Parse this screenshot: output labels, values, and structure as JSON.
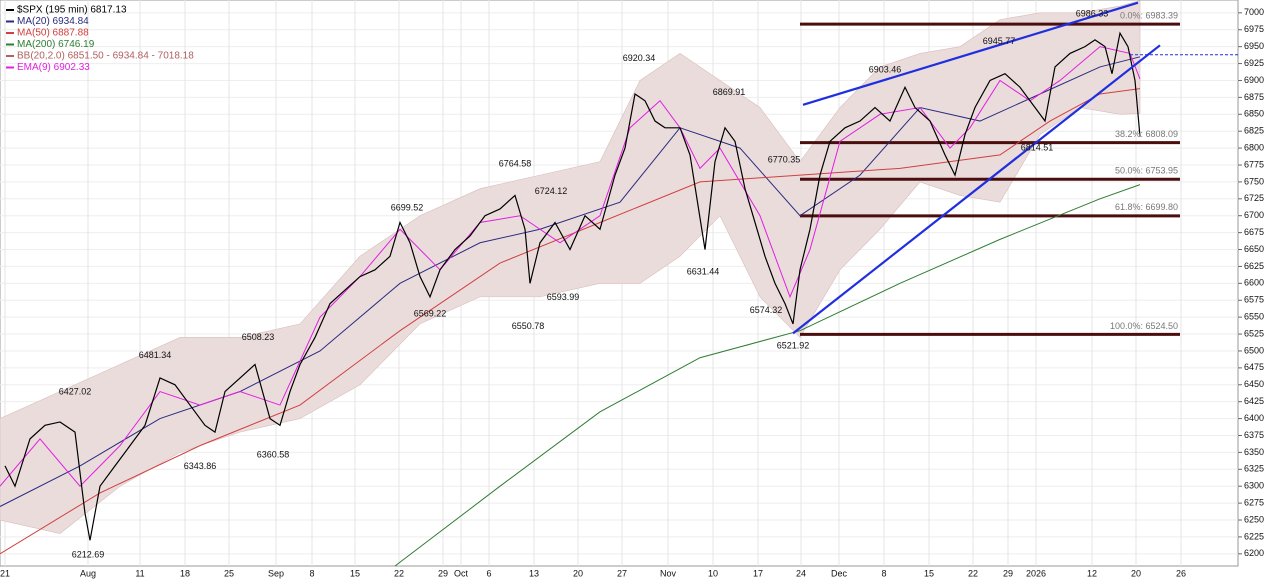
{
  "chart_data": {
    "type": "line",
    "title": "$SPX (195 min) 6817.13",
    "xlim": [
      0,
      1238
    ],
    "ylim": [
      6182,
      7019
    ],
    "xticks": [
      {
        "value": 5,
        "label": "21"
      },
      {
        "value": 88,
        "label": "Aug"
      },
      {
        "value": 140,
        "label": "11"
      },
      {
        "value": 185,
        "label": "18"
      },
      {
        "value": 229,
        "label": "25"
      },
      {
        "value": 276,
        "label": "Sep"
      },
      {
        "value": 312,
        "label": "8"
      },
      {
        "value": 355,
        "label": "15"
      },
      {
        "value": 399,
        "label": "22"
      },
      {
        "value": 443,
        "label": "29"
      },
      {
        "value": 461,
        "label": "Oct"
      },
      {
        "value": 489,
        "label": "6"
      },
      {
        "value": 534,
        "label": "13"
      },
      {
        "value": 578,
        "label": "20"
      },
      {
        "value": 622,
        "label": "27"
      },
      {
        "value": 668,
        "label": "Nov"
      },
      {
        "value": 713,
        "label": "10"
      },
      {
        "value": 758,
        "label": "17"
      },
      {
        "value": 801,
        "label": "24"
      },
      {
        "value": 839,
        "label": "Dec"
      },
      {
        "value": 884,
        "label": "8"
      },
      {
        "value": 929,
        "label": "15"
      },
      {
        "value": 973,
        "label": "22"
      },
      {
        "value": 1008,
        "label": "29"
      },
      {
        "value": 1036,
        "label": "2026"
      },
      {
        "value": 1092,
        "label": "12"
      },
      {
        "value": 1136,
        "label": "20"
      },
      {
        "value": 1181,
        "label": "26"
      }
    ],
    "yticks": [
      6200,
      6225,
      6250,
      6275,
      6300,
      6325,
      6350,
      6375,
      6400,
      6425,
      6450,
      6475,
      6500,
      6525,
      6550,
      6575,
      6600,
      6625,
      6650,
      6675,
      6700,
      6725,
      6750,
      6775,
      6800,
      6825,
      6850,
      6875,
      6900,
      6925,
      6950,
      6975,
      7000
    ],
    "grid": true,
    "band": {
      "name": "BB(20,2.0) 6851.50 - 6934.84 - 7018.18",
      "color": "#ebdcdc",
      "x": [
        0,
        60,
        120,
        180,
        240,
        300,
        360,
        420,
        480,
        540,
        600,
        640,
        680,
        720,
        760,
        800,
        840,
        880,
        920,
        960,
        1000,
        1040,
        1080,
        1120,
        1140
      ],
      "upper": [
        6400,
        6440,
        6480,
        6520,
        6520,
        6540,
        6640,
        6700,
        6740,
        6760,
        6780,
        6900,
        6940,
        6900,
        6860,
        6780,
        6860,
        6920,
        6940,
        6950,
        6990,
        7000,
        7000,
        7010,
        7018
      ],
      "lower": [
        6250,
        6230,
        6300,
        6350,
        6380,
        6400,
        6450,
        6540,
        6580,
        6580,
        6600,
        6600,
        6640,
        6700,
        6580,
        6520,
        6620,
        6680,
        6750,
        6730,
        6720,
        6820,
        6860,
        6850,
        6851
      ]
    },
    "series": [
      {
        "name": "MA(20) 6934.84",
        "color": "#2b2b80",
        "x": [
          0,
          80,
          160,
          240,
          320,
          400,
          480,
          540,
          620,
          680,
          740,
          800,
          860,
          920,
          980,
          1040,
          1100,
          1140
        ],
        "values": [
          6270,
          6330,
          6400,
          6440,
          6500,
          6600,
          6660,
          6680,
          6720,
          6830,
          6800,
          6700,
          6760,
          6860,
          6840,
          6880,
          6920,
          6935
        ]
      },
      {
        "name": "MA(50) 6887.88",
        "color": "#d04040",
        "x": [
          0,
          100,
          200,
          300,
          400,
          500,
          600,
          700,
          800,
          900,
          1000,
          1050,
          1100,
          1140
        ],
        "values": [
          6200,
          6290,
          6360,
          6420,
          6530,
          6630,
          6690,
          6750,
          6760,
          6770,
          6790,
          6840,
          6880,
          6888
        ]
      },
      {
        "name": "MA(200) 6746.19",
        "color": "#2e7d32",
        "x": [
          395,
          500,
          600,
          700,
          800,
          900,
          1000,
          1100,
          1140
        ],
        "values": [
          6182,
          6300,
          6410,
          6490,
          6530,
          6600,
          6665,
          6725,
          6746
        ]
      },
      {
        "name": "EMA(9) 6902.33",
        "color": "#e020e0",
        "x": [
          0,
          40,
          80,
          120,
          160,
          200,
          240,
          280,
          320,
          360,
          400,
          440,
          480,
          520,
          560,
          600,
          630,
          660,
          680,
          700,
          720,
          760,
          790,
          810,
          840,
          880,
          920,
          950,
          970,
          1000,
          1030,
          1060,
          1100,
          1130,
          1140
        ],
        "values": [
          6300,
          6370,
          6300,
          6360,
          6440,
          6420,
          6440,
          6420,
          6550,
          6610,
          6680,
          6620,
          6690,
          6700,
          6660,
          6700,
          6830,
          6870,
          6830,
          6770,
          6800,
          6700,
          6580,
          6650,
          6810,
          6850,
          6860,
          6800,
          6830,
          6900,
          6870,
          6900,
          6950,
          6940,
          6902
        ]
      },
      {
        "name": "$SPX (195 min) 6817.13",
        "color": "#000000",
        "x": [
          5,
          15,
          30,
          45,
          60,
          75,
          85,
          90,
          100,
          115,
          130,
          145,
          160,
          175,
          190,
          205,
          215,
          225,
          240,
          255,
          270,
          280,
          290,
          300,
          315,
          330,
          345,
          360,
          375,
          390,
          400,
          410,
          420,
          430,
          440,
          455,
          470,
          485,
          500,
          515,
          525,
          530,
          540,
          555,
          570,
          585,
          600,
          615,
          625,
          635,
          645,
          655,
          665,
          680,
          690,
          705,
          715,
          725,
          735,
          745,
          755,
          765,
          775,
          785,
          793,
          800,
          810,
          820,
          830,
          845,
          860,
          875,
          890,
          905,
          915,
          930,
          945,
          955,
          965,
          975,
          990,
          1005,
          1020,
          1035,
          1045,
          1055,
          1070,
          1085,
          1095,
          1105,
          1112,
          1120,
          1128,
          1135,
          1140
        ],
        "values": [
          6330,
          6300,
          6370,
          6390,
          6395,
          6380,
          6260,
          6220,
          6300,
          6330,
          6360,
          6390,
          6460,
          6450,
          6420,
          6390,
          6380,
          6440,
          6460,
          6480,
          6400,
          6390,
          6440,
          6480,
          6520,
          6570,
          6590,
          6610,
          6620,
          6640,
          6690,
          6660,
          6610,
          6580,
          6620,
          6650,
          6670,
          6700,
          6710,
          6730,
          6680,
          6600,
          6660,
          6690,
          6650,
          6700,
          6680,
          6760,
          6800,
          6880,
          6870,
          6840,
          6830,
          6830,
          6790,
          6650,
          6780,
          6830,
          6810,
          6740,
          6690,
          6640,
          6600,
          6570,
          6540,
          6620,
          6680,
          6760,
          6810,
          6830,
          6840,
          6860,
          6840,
          6890,
          6860,
          6840,
          6790,
          6760,
          6820,
          6860,
          6900,
          6910,
          6890,
          6860,
          6840,
          6920,
          6940,
          6950,
          6960,
          6950,
          6910,
          6970,
          6950,
          6900,
          6817
        ]
      }
    ],
    "annotations": [
      {
        "x": 75,
        "value": 6427.02,
        "position": "above"
      },
      {
        "x": 88,
        "value": 6212.69,
        "position": "below"
      },
      {
        "x": 155,
        "value": 6481.34,
        "position": "above"
      },
      {
        "x": 200,
        "value": 6343.86,
        "position": "below"
      },
      {
        "x": 258,
        "value": 6508.23,
        "position": "above"
      },
      {
        "x": 273,
        "value": 6360.58,
        "position": "below"
      },
      {
        "x": 407,
        "value": 6699.52,
        "position": "above"
      },
      {
        "x": 430,
        "value": 6569.22,
        "position": "below"
      },
      {
        "x": 515,
        "value": 6764.58,
        "position": "above"
      },
      {
        "x": 528,
        "value": 6550.78,
        "position": "below"
      },
      {
        "x": 551,
        "value": 6724.12,
        "position": "above"
      },
      {
        "x": 563,
        "value": 6593.99,
        "position": "below"
      },
      {
        "x": 639,
        "value": 6920.34,
        "position": "above"
      },
      {
        "x": 729,
        "value": 6869.91,
        "position": "above"
      },
      {
        "x": 703,
        "value": 6631.44,
        "position": "below"
      },
      {
        "x": 784,
        "value": 6770.35,
        "position": "above"
      },
      {
        "x": 766,
        "value": 6574.32,
        "position": "below"
      },
      {
        "x": 793,
        "value": 6521.92,
        "position": "below"
      },
      {
        "x": 885,
        "value": 6903.46,
        "position": "above"
      },
      {
        "x": 999,
        "value": 6945.77,
        "position": "above"
      },
      {
        "x": 1092,
        "value": 6986.33,
        "position": "above"
      },
      {
        "x": 1037,
        "value": 6814.51,
        "position": "below"
      }
    ],
    "fib_levels": [
      {
        "value": 6983.39,
        "label": "0.0%: 6983.39"
      },
      {
        "value": 6808.09,
        "label": "38.2%: 6808.09"
      },
      {
        "value": 6753.95,
        "label": "50.0%: 6753.95"
      },
      {
        "value": 6699.8,
        "label": "61.8%: 6699.80"
      },
      {
        "value": 6524.5,
        "label": "100.0%: 6524.50"
      }
    ],
    "fib_color": "#4a0e0e",
    "fib_xlim": [
      800,
      1180
    ],
    "trendlines": {
      "color": "#1f2fe0",
      "lines": [
        {
          "x": [
            803,
            1138
          ],
          "values": [
            6864,
            7015
          ]
        },
        {
          "x": [
            793,
            1160
          ],
          "values": [
            6526,
            6952
          ]
        }
      ]
    },
    "price_line": 6938
  }
}
